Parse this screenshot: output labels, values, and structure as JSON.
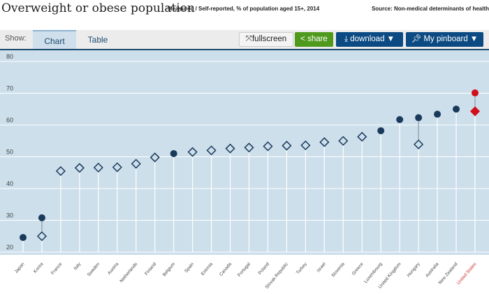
{
  "header": {
    "title": "Overweight or obese population",
    "subtitle": "Measured / Self-reported, % of population aged 15+, 2014",
    "source": "Source: Non-medical determinants of health"
  },
  "toolbar": {
    "show_label": "Show:",
    "tabs": [
      {
        "label": "Chart",
        "active": true
      },
      {
        "label": "Table",
        "active": false
      }
    ],
    "fullscreen": "fullscreen",
    "share": "share",
    "download": "download ▼",
    "pinboard": "My pinboard ▼"
  },
  "colors": {
    "background": "#cddfeb",
    "marker": "#1a3a5c",
    "highlight": "#d0101b",
    "share": "#4f9a1d",
    "navy": "#0b4a82"
  },
  "chart_data": {
    "type": "scatter",
    "ylim": [
      20,
      80
    ],
    "yticks": [
      20,
      30,
      40,
      50,
      60,
      70,
      80
    ],
    "grid": true,
    "categories": [
      "Japan",
      "Korea",
      "France",
      "Italy",
      "Sweden",
      "Austria",
      "Netherlands",
      "Finland",
      "Belgium",
      "Spain",
      "Estonia",
      "Canada",
      "Portugal",
      "Poland",
      "Slovak Republic",
      "Turkey",
      "Israel",
      "Slovenia",
      "Greece",
      "Luxembourg",
      "United Kingdom",
      "Hungary",
      "Australia",
      "New Zealand",
      "United States"
    ],
    "highlight": "United States",
    "series": [
      {
        "marker": "filled-circle",
        "values": [
          24.6,
          30.8,
          null,
          null,
          null,
          null,
          null,
          null,
          51.0,
          null,
          null,
          null,
          null,
          null,
          null,
          null,
          null,
          null,
          null,
          58.2,
          61.7,
          62.3,
          63.4,
          65.0,
          70.1
        ]
      },
      {
        "marker": "open-diamond",
        "values": [
          null,
          25.0,
          45.5,
          46.5,
          46.6,
          46.7,
          47.8,
          49.8,
          null,
          51.5,
          52.0,
          52.6,
          52.9,
          53.3,
          53.5,
          53.6,
          54.6,
          55.0,
          56.3,
          null,
          null,
          53.9,
          null,
          null,
          64.3
        ]
      }
    ]
  }
}
